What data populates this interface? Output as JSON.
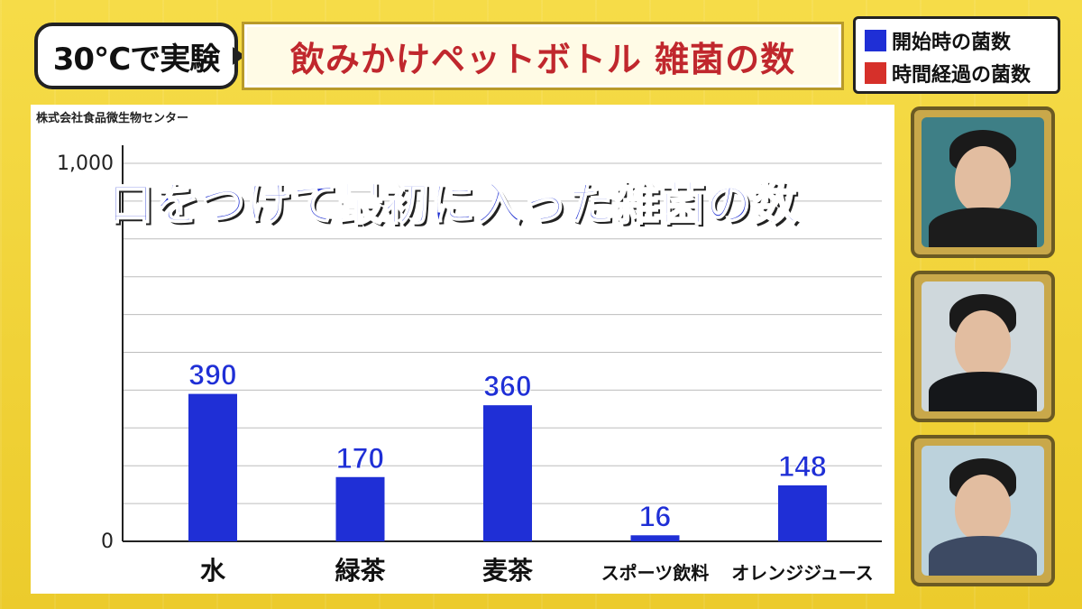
{
  "header": {
    "tag": "30℃で実験",
    "title": "飲みかけペットボトル 雑菌の数"
  },
  "legend": [
    {
      "label": "開始時の菌数",
      "color": "#1f2fd6"
    },
    {
      "label": "時間経過の菌数",
      "color": "#d6302a"
    }
  ],
  "source": "株式会社食品微生物センター",
  "overlay_title": "口をつけて最初に入った雑菌の数",
  "chart_data": {
    "type": "bar",
    "categories": [
      "水",
      "緑茶",
      "麦茶",
      "スポーツ飲料",
      "オレンジジュース"
    ],
    "values": [
      390,
      170,
      360,
      16,
      148
    ],
    "value_labels": [
      "390",
      "170",
      "360",
      "16",
      "148"
    ],
    "ylim": [
      0,
      1000
    ],
    "y_ticks": [
      {
        "value": 0,
        "label": "0"
      },
      {
        "value": 1000,
        "label": "1,000"
      }
    ],
    "grid_step": 100,
    "grid": true,
    "bar_color": "#1f2fd6",
    "title": "",
    "xlabel": "",
    "ylabel": ""
  },
  "panelists": [
    {
      "icon": "person-icon"
    },
    {
      "icon": "person-icon"
    },
    {
      "icon": "person-icon"
    }
  ]
}
